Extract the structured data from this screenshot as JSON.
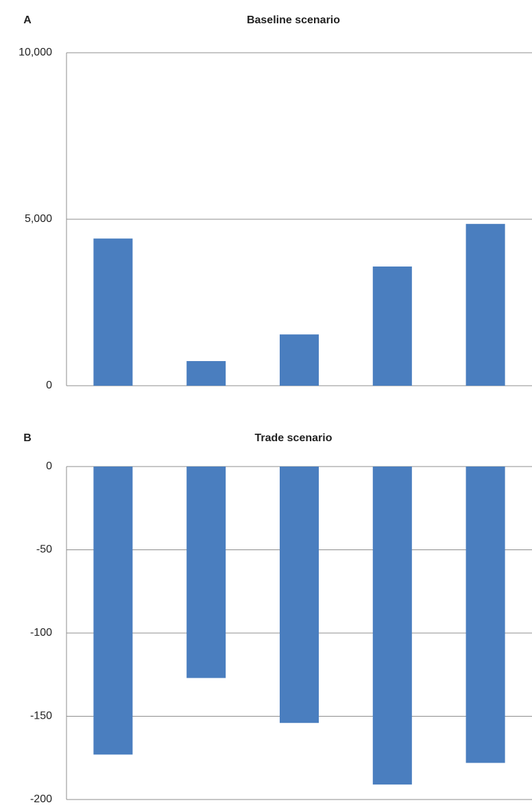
{
  "chart_data": [
    {
      "type": "bar",
      "panel_label": "A",
      "title": "Baseline scenario",
      "categories": [
        null,
        null,
        null,
        null,
        null
      ],
      "values": [
        4420,
        740,
        1540,
        3580,
        4860
      ],
      "color": "#4a7ebf",
      "ylim": [
        0,
        10000
      ],
      "yticks": [
        0,
        {
          "value": 5000,
          "label": "5,000"
        },
        {
          "value": 10000,
          "label": "10,000"
        }
      ],
      "grid": true
    },
    {
      "type": "bar",
      "panel_label": "B",
      "title": "Trade scenario",
      "categories": [
        null,
        null,
        null,
        null,
        null
      ],
      "values": [
        -173,
        -127,
        -154,
        -191,
        -178
      ],
      "color": "#4a7ebf",
      "ylim": [
        -200,
        0
      ],
      "yticks": [
        0,
        -50,
        -100,
        -150,
        -200
      ],
      "grid": true
    }
  ]
}
